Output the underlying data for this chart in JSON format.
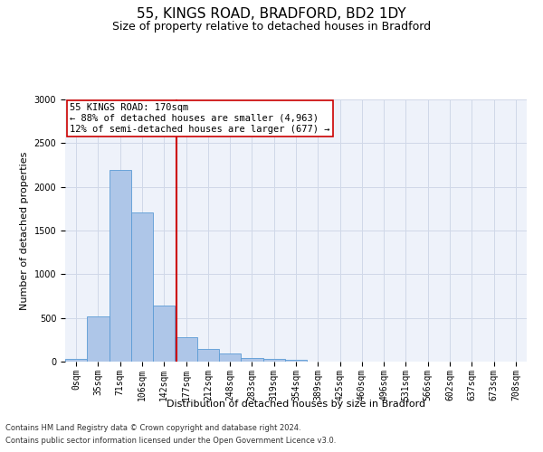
{
  "title": "55, KINGS ROAD, BRADFORD, BD2 1DY",
  "subtitle": "Size of property relative to detached houses in Bradford",
  "xlabel": "Distribution of detached houses by size in Bradford",
  "ylabel": "Number of detached properties",
  "footnote1": "Contains HM Land Registry data © Crown copyright and database right 2024.",
  "footnote2": "Contains public sector information licensed under the Open Government Licence v3.0.",
  "annotation_line1": "55 KINGS ROAD: 170sqm",
  "annotation_line2": "← 88% of detached houses are smaller (4,963)",
  "annotation_line3": "12% of semi-detached houses are larger (677) →",
  "bar_labels": [
    "0sqm",
    "35sqm",
    "71sqm",
    "106sqm",
    "142sqm",
    "177sqm",
    "212sqm",
    "248sqm",
    "283sqm",
    "319sqm",
    "354sqm",
    "389sqm",
    "425sqm",
    "460sqm",
    "496sqm",
    "531sqm",
    "566sqm",
    "602sqm",
    "637sqm",
    "673sqm",
    "708sqm"
  ],
  "bar_values": [
    30,
    520,
    2190,
    1710,
    640,
    280,
    145,
    90,
    45,
    30,
    25,
    0,
    0,
    0,
    0,
    0,
    0,
    0,
    0,
    0,
    0
  ],
  "bar_color": "#aec6e8",
  "bar_edge_color": "#5b9bd5",
  "vline_color": "#cc0000",
  "vline_x": 4.57,
  "ylim": [
    0,
    3000
  ],
  "yticks": [
    0,
    500,
    1000,
    1500,
    2000,
    2500,
    3000
  ],
  "grid_color": "#d0d8e8",
  "bg_color": "#eef2fa",
  "annotation_box_color": "#cc0000",
  "title_fontsize": 11,
  "subtitle_fontsize": 9,
  "axis_label_fontsize": 8,
  "tick_fontsize": 7,
  "annotation_fontsize": 7.5,
  "footnote_fontsize": 6
}
